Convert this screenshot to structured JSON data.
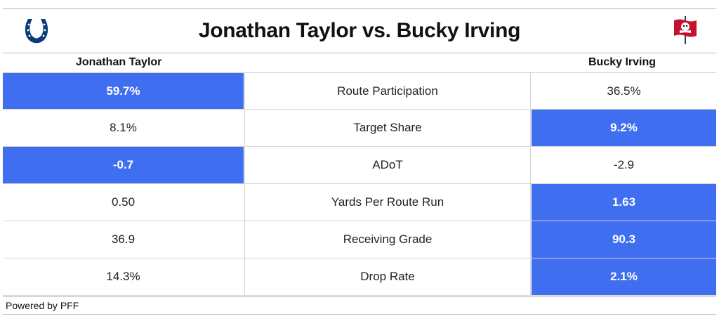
{
  "header": {
    "title": "Jonathan Taylor vs. Bucky Irving",
    "left_logo_icon": "colts-horseshoe-icon",
    "right_logo_icon": "buccaneers-flag-icon"
  },
  "columns": {
    "left_player": "Jonathan Taylor",
    "right_player": "Bucky Irving"
  },
  "colors": {
    "highlight": "#3f6ef0",
    "colts_blue": "#0b3a7e",
    "bucs_red": "#c8102e",
    "bucs_pewter": "#3a3a3a"
  },
  "chart_data": {
    "type": "table",
    "title": "Jonathan Taylor vs. Bucky Irving",
    "columns": [
      "Jonathan Taylor",
      "",
      "Bucky Irving"
    ],
    "rows": [
      {
        "left": "59.7%",
        "metric": "Route Participation",
        "right": "36.5%",
        "leader": "left"
      },
      {
        "left": "8.1%",
        "metric": "Target Share",
        "right": "9.2%",
        "leader": "right"
      },
      {
        "left": "-0.7",
        "metric": "ADoT",
        "right": "-2.9",
        "leader": "left"
      },
      {
        "left": "0.50",
        "metric": "Yards Per Route Run",
        "right": "1.63",
        "leader": "right"
      },
      {
        "left": "36.9",
        "metric": "Receiving Grade",
        "right": "90.3",
        "leader": "right"
      },
      {
        "left": "14.3%",
        "metric": "Drop Rate",
        "right": "2.1%",
        "leader": "right"
      }
    ]
  },
  "footer": {
    "credit": "Powered by PFF"
  }
}
